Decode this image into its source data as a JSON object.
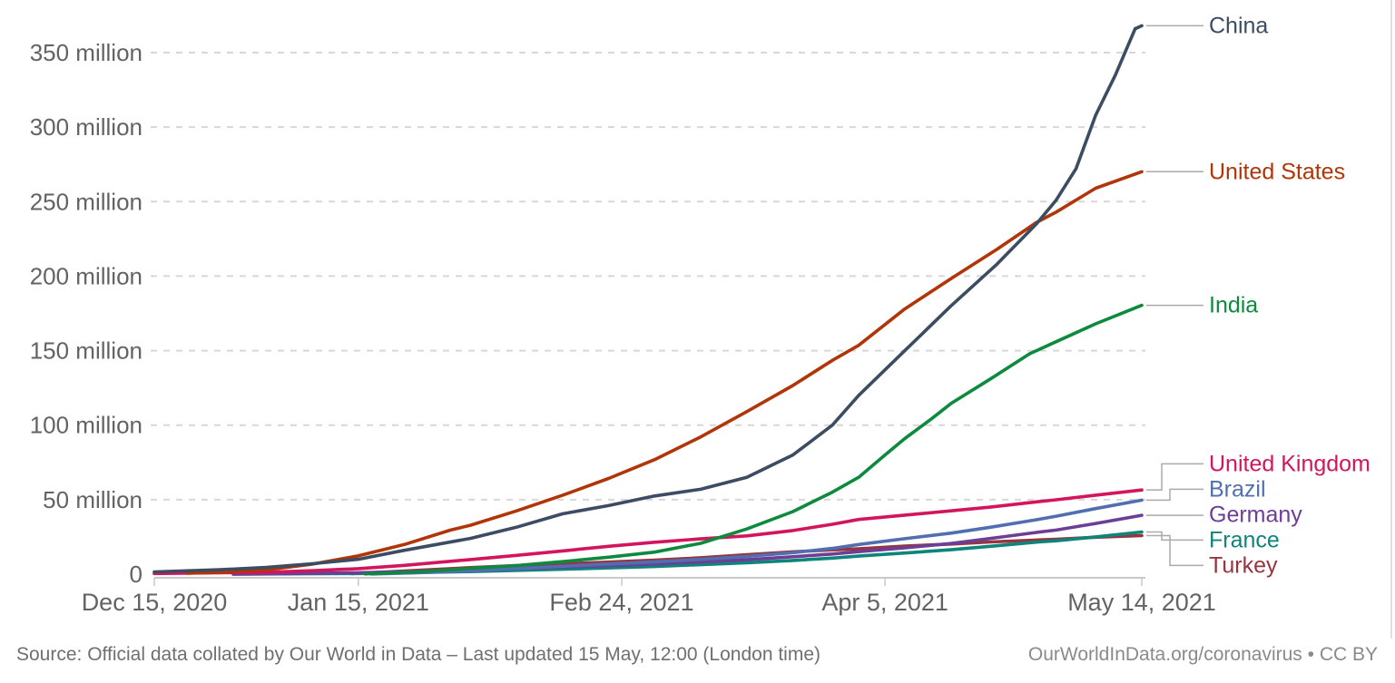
{
  "footer": {
    "source": "Source: Official data collated by Our World in Data – Last updated 15 May, 12:00 (London time)",
    "attribution": "OurWorldInData.org/coronavirus • CC BY"
  },
  "chart_data": {
    "type": "line",
    "description_of_values": "cumulative values in millions, daily time axis from Dec 15 2020 to May 14 2021",
    "legend_position": "right-end-labels",
    "x_axis": {
      "day_range": [
        0,
        150
      ],
      "ticks": [
        {
          "label": "Dec 15, 2020",
          "day": 0
        },
        {
          "label": "Jan 15, 2021",
          "day": 31
        },
        {
          "label": "Feb 24, 2021",
          "day": 71
        },
        {
          "label": "Apr 5, 2021",
          "day": 111
        },
        {
          "label": "May 14, 2021",
          "day": 150
        }
      ]
    },
    "y_axis": {
      "min": 0,
      "max": 350,
      "step": 50,
      "gridlines": "dashed",
      "tick_labels": [
        {
          "value": 0,
          "label": "0"
        },
        {
          "value": 50,
          "label": "50 million"
        },
        {
          "value": 100,
          "label": "100 million"
        },
        {
          "value": 150,
          "label": "150 million"
        },
        {
          "value": 200,
          "label": "200 million"
        },
        {
          "value": 250,
          "label": "250 million"
        },
        {
          "value": 300,
          "label": "300 million"
        },
        {
          "value": 350,
          "label": "350 million"
        }
      ]
    },
    "series": [
      {
        "name": "China",
        "color": "#3b4c63",
        "points": [
          [
            0,
            1.5
          ],
          [
            10,
            3
          ],
          [
            17,
            4.5
          ],
          [
            24,
            7
          ],
          [
            31,
            10
          ],
          [
            38,
            16
          ],
          [
            48,
            24
          ],
          [
            55,
            31.5
          ],
          [
            62,
            40.5
          ],
          [
            69,
            46
          ],
          [
            76,
            52.5
          ],
          [
            83,
            57
          ],
          [
            90,
            65
          ],
          [
            97,
            80
          ],
          [
            103,
            100
          ],
          [
            107,
            120
          ],
          [
            114,
            150
          ],
          [
            121,
            180
          ],
          [
            128,
            208
          ],
          [
            134,
            235
          ],
          [
            137,
            251
          ],
          [
            140,
            272
          ],
          [
            143,
            308
          ],
          [
            146,
            335
          ],
          [
            149,
            366
          ],
          [
            150,
            368
          ]
        ]
      },
      {
        "name": "United States",
        "color": "#b13507",
        "points": [
          [
            5,
            0.6
          ],
          [
            10,
            1.3
          ],
          [
            17,
            2.8
          ],
          [
            24,
            6.7
          ],
          [
            31,
            12.3
          ],
          [
            38,
            19.9
          ],
          [
            45,
            29.6
          ],
          [
            48,
            32.8
          ],
          [
            55,
            42.4
          ],
          [
            62,
            52.9
          ],
          [
            69,
            64.2
          ],
          [
            76,
            76.9
          ],
          [
            83,
            92.1
          ],
          [
            90,
            109.1
          ],
          [
            97,
            126.6
          ],
          [
            103,
            143.5
          ],
          [
            107,
            153.6
          ],
          [
            114,
            178
          ],
          [
            121,
            198.3
          ],
          [
            128,
            218
          ],
          [
            134,
            236
          ],
          [
            137,
            243
          ],
          [
            143,
            259
          ],
          [
            150,
            270.1
          ]
        ]
      },
      {
        "name": "India",
        "color": "#0d8a3e",
        "points": [
          [
            32,
            0.2
          ],
          [
            40,
            1.5
          ],
          [
            48,
            3.9
          ],
          [
            55,
            5.8
          ],
          [
            62,
            8.4
          ],
          [
            69,
            11.4
          ],
          [
            76,
            14.8
          ],
          [
            83,
            20.7
          ],
          [
            90,
            30.3
          ],
          [
            97,
            42
          ],
          [
            103,
            55
          ],
          [
            107,
            65
          ],
          [
            111,
            80
          ],
          [
            114,
            91
          ],
          [
            118,
            104
          ],
          [
            121,
            114.5
          ],
          [
            127,
            131
          ],
          [
            133,
            148
          ],
          [
            137,
            156
          ],
          [
            143,
            168
          ],
          [
            150,
            180.4
          ]
        ]
      },
      {
        "name": "United Kingdom",
        "color": "#d3155d",
        "points": [
          [
            0,
            0.4
          ],
          [
            10,
            0.9
          ],
          [
            17,
            1.3
          ],
          [
            24,
            2.3
          ],
          [
            31,
            3.7
          ],
          [
            38,
            5.9
          ],
          [
            48,
            9.8
          ],
          [
            55,
            12.6
          ],
          [
            62,
            15.6
          ],
          [
            69,
            18.7
          ],
          [
            76,
            21.4
          ],
          [
            83,
            23.7
          ],
          [
            90,
            25.7
          ],
          [
            97,
            29.3
          ],
          [
            103,
            33.5
          ],
          [
            107,
            36.7
          ],
          [
            114,
            39.6
          ],
          [
            121,
            42.5
          ],
          [
            127,
            45
          ],
          [
            134,
            48.5
          ],
          [
            137,
            49.9
          ],
          [
            143,
            53
          ],
          [
            150,
            56.5
          ]
        ]
      },
      {
        "name": "Brazil",
        "color": "#506eb0",
        "points": [
          [
            33,
            0.1
          ],
          [
            40,
            1
          ],
          [
            48,
            2.2
          ],
          [
            55,
            3.8
          ],
          [
            62,
            5.3
          ],
          [
            69,
            6.8
          ],
          [
            76,
            8.3
          ],
          [
            83,
            9.9
          ],
          [
            90,
            11.9
          ],
          [
            97,
            14.4
          ],
          [
            103,
            17.3
          ],
          [
            107,
            19.9
          ],
          [
            114,
            23.8
          ],
          [
            121,
            27.5
          ],
          [
            127,
            31.5
          ],
          [
            134,
            36.5
          ],
          [
            137,
            38.9
          ],
          [
            143,
            44
          ],
          [
            150,
            49.7
          ]
        ]
      },
      {
        "name": "Germany",
        "color": "#6d3e95",
        "points": [
          [
            12,
            0
          ],
          [
            17,
            0.2
          ],
          [
            31,
            1
          ],
          [
            40,
            1.9
          ],
          [
            48,
            2.8
          ],
          [
            62,
            4.7
          ],
          [
            76,
            6.8
          ],
          [
            90,
            9.7
          ],
          [
            97,
            11.7
          ],
          [
            103,
            13.5
          ],
          [
            107,
            15.1
          ],
          [
            114,
            17.7
          ],
          [
            121,
            20.6
          ],
          [
            127,
            24
          ],
          [
            134,
            28
          ],
          [
            137,
            29.6
          ],
          [
            143,
            34
          ],
          [
            150,
            39.5
          ]
        ]
      },
      {
        "name": "France",
        "color": "#0e857a",
        "points": [
          [
            12,
            0
          ],
          [
            31,
            0.4
          ],
          [
            48,
            1.7
          ],
          [
            62,
            3.3
          ],
          [
            76,
            5.1
          ],
          [
            90,
            7.7
          ],
          [
            97,
            9.2
          ],
          [
            103,
            10.8
          ],
          [
            107,
            12.1
          ],
          [
            114,
            14.2
          ],
          [
            121,
            16.4
          ],
          [
            127,
            18.7
          ],
          [
            134,
            21.5
          ],
          [
            137,
            22.4
          ],
          [
            143,
            25
          ],
          [
            150,
            28.3
          ]
        ]
      },
      {
        "name": "Turkey",
        "color": "#963540",
        "points": [
          [
            30,
            0.3
          ],
          [
            34,
            1.2
          ],
          [
            41,
            2.8
          ],
          [
            48,
            4.4
          ],
          [
            55,
            5.7
          ],
          [
            62,
            6.9
          ],
          [
            69,
            8.1
          ],
          [
            76,
            9.4
          ],
          [
            83,
            11
          ],
          [
            90,
            13.1
          ],
          [
            97,
            15
          ],
          [
            103,
            16.3
          ],
          [
            107,
            17
          ],
          [
            114,
            18.8
          ],
          [
            121,
            20.2
          ],
          [
            127,
            21.6
          ],
          [
            134,
            22.9
          ],
          [
            137,
            23.4
          ],
          [
            143,
            24.8
          ],
          [
            150,
            25.9
          ]
        ]
      }
    ]
  }
}
